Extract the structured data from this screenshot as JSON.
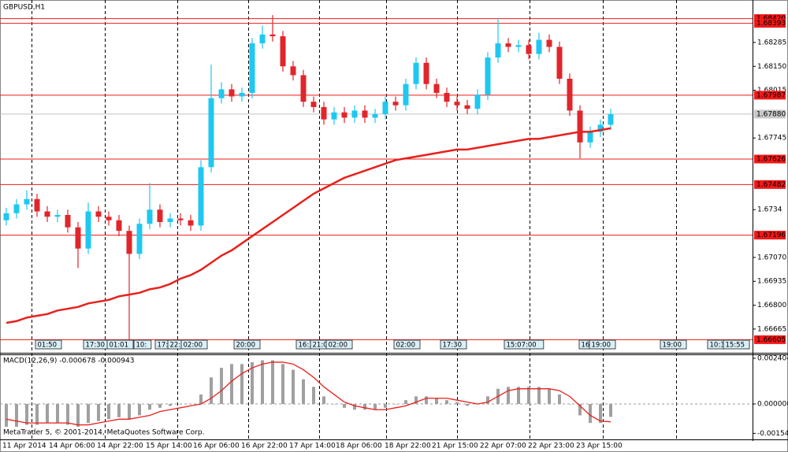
{
  "chart_data": [
    {
      "type": "candlestick",
      "title": "GBPUSD,H1",
      "up_color": "#1ec8f0",
      "down_color": "#e0262b",
      "open": [
        1.6728,
        1.6732,
        1.6737,
        1.674,
        1.6733,
        1.673,
        1.6731,
        1.6724,
        1.6712,
        1.6733,
        1.673,
        1.6728,
        1.6722,
        1.6709,
        1.6726,
        1.6734,
        1.6727,
        1.6729,
        1.6728,
        1.6725,
        1.6758,
        1.6797,
        1.6802,
        1.6798,
        1.68,
        1.6828,
        1.6833,
        1.6832,
        1.6815,
        1.681,
        1.6795,
        1.6792,
        1.6785,
        1.6789,
        1.6786,
        1.679,
        1.6786,
        1.6788,
        1.6795,
        1.6793,
        1.6805,
        1.6817,
        1.6805,
        1.68,
        1.6795,
        1.6793,
        1.6791,
        1.6799,
        1.682,
        1.6828,
        1.6826,
        1.6827,
        1.6822,
        1.683,
        1.6826,
        1.6808,
        1.679,
        1.6772,
        1.6778,
        1.6782
      ],
      "high": [
        1.6735,
        1.674,
        1.6745,
        1.6743,
        1.6736,
        1.6734,
        1.6734,
        1.6727,
        1.6738,
        1.6736,
        1.6733,
        1.6731,
        1.6725,
        1.6729,
        1.6749,
        1.6737,
        1.6732,
        1.6732,
        1.6731,
        1.6762,
        1.6816,
        1.6806,
        1.6805,
        1.6803,
        1.6831,
        1.6838,
        1.6844,
        1.6835,
        1.6818,
        1.6813,
        1.6798,
        1.6795,
        1.6792,
        1.6792,
        1.6793,
        1.6793,
        1.6791,
        1.6798,
        1.6798,
        1.6808,
        1.682,
        1.682,
        1.6808,
        1.6803,
        1.6798,
        1.6796,
        1.6802,
        1.6823,
        1.6842,
        1.6831,
        1.683,
        1.683,
        1.6834,
        1.6833,
        1.6829,
        1.6811,
        1.6793,
        1.6781,
        1.6785,
        1.6791
      ],
      "low": [
        1.6725,
        1.6729,
        1.6734,
        1.673,
        1.6727,
        1.6727,
        1.6721,
        1.6701,
        1.6709,
        1.6727,
        1.6725,
        1.6719,
        1.666,
        1.6706,
        1.6723,
        1.6724,
        1.6724,
        1.6725,
        1.6722,
        1.6722,
        1.6755,
        1.6794,
        1.6795,
        1.6795,
        1.6797,
        1.6825,
        1.6829,
        1.6812,
        1.6807,
        1.6792,
        1.6789,
        1.6782,
        1.6782,
        1.6783,
        1.6783,
        1.6783,
        1.6783,
        1.6785,
        1.679,
        1.679,
        1.6802,
        1.6802,
        1.6797,
        1.6792,
        1.679,
        1.6788,
        1.6788,
        1.6796,
        1.6817,
        1.6823,
        1.6823,
        1.6819,
        1.6819,
        1.6823,
        1.6805,
        1.6787,
        1.6763,
        1.6769,
        1.6775,
        1.6779
      ],
      "close": [
        1.6732,
        1.6737,
        1.674,
        1.6733,
        1.673,
        1.6731,
        1.6724,
        1.6712,
        1.6733,
        1.673,
        1.6728,
        1.6722,
        1.6709,
        1.6726,
        1.6734,
        1.6727,
        1.6729,
        1.6728,
        1.6725,
        1.6758,
        1.6797,
        1.6802,
        1.6798,
        1.68,
        1.6828,
        1.6833,
        1.6832,
        1.6815,
        1.681,
        1.6795,
        1.6792,
        1.6785,
        1.6789,
        1.6786,
        1.679,
        1.6786,
        1.6788,
        1.6795,
        1.6793,
        1.6805,
        1.6817,
        1.6805,
        1.68,
        1.6795,
        1.6793,
        1.6791,
        1.6799,
        1.682,
        1.6828,
        1.6826,
        1.6827,
        1.6822,
        1.683,
        1.6826,
        1.6808,
        1.679,
        1.6772,
        1.6778,
        1.6782,
        1.6788
      ],
      "ma": {
        "color": "#e8201c",
        "values": [
          1.667,
          1.6671,
          1.6673,
          1.6674,
          1.6675,
          1.6677,
          1.6678,
          1.6679,
          1.6681,
          1.6682,
          1.6683,
          1.6685,
          1.6686,
          1.6687,
          1.6689,
          1.669,
          1.6692,
          1.6695,
          1.6697,
          1.67,
          1.6704,
          1.6708,
          1.6711,
          1.6715,
          1.6719,
          1.6723,
          1.6727,
          1.6731,
          1.6735,
          1.6739,
          1.6743,
          1.6746,
          1.6749,
          1.6752,
          1.6754,
          1.6756,
          1.6758,
          1.676,
          1.6762,
          1.6763,
          1.6764,
          1.6765,
          1.6766,
          1.6767,
          1.6768,
          1.6768,
          1.6769,
          1.677,
          1.6771,
          1.6772,
          1.6773,
          1.6774,
          1.6774,
          1.6775,
          1.6776,
          1.6777,
          1.6778,
          1.6778,
          1.6779,
          1.678
        ]
      },
      "ylim": [
        1.66531,
        1.68525
      ],
      "yticks": [
        1.68285,
        {
          "value": 1.6815,
          "label": "1.68150"
        },
        1.68015,
        1.67745,
        1.6734,
        {
          "value": 1.6707,
          "label": "1.67070"
        },
        1.66935,
        {
          "value": 1.668,
          "label": "1.66800"
        },
        1.66665
      ],
      "levels": [
        {
          "value": 1.6842,
          "label": "1.68420"
        },
        1.68393,
        1.67987,
        1.67626,
        1.67482,
        1.67196,
        1.66605
      ],
      "level_color": "#f01818",
      "current_price": {
        "value": 1.6788,
        "label": "1.67880"
      },
      "markers": [
        "01:50",
        "17:30",
        "01:01",
        "10:",
        "17:",
        "22:",
        "02:00",
        "20:00",
        "16:3",
        "21:0",
        "02:00",
        "02:00",
        "17:30",
        "15:07:00",
        "16",
        "19:00",
        "19:00",
        "10:3",
        "15:55"
      ],
      "x_labels": [
        "11 Apr 2014",
        "14 Apr 06:00",
        "14 Apr 22:00",
        "15 Apr 14:00",
        "16 Apr 06:00",
        "16 Apr 22:00",
        "17 Apr 14:00",
        "18 Apr 06:00",
        "18 Apr 22:00",
        "21 Apr 15:00",
        "22 Apr 07:00",
        "22 Apr 23:00",
        "23 Apr 15:00"
      ]
    },
    {
      "type": "macd",
      "title": "MACD(12,26,9) -0.000678 -0.000943",
      "footer": "MetaTrader 5, © 2001-2014, MetaQuotes Software Corp.",
      "color": "#a0a0a0",
      "values": [
        -0.0012,
        -0.0012,
        -0.0011,
        -0.0011,
        -0.001,
        -0.001,
        -0.0011,
        -0.0012,
        -0.001,
        -0.0009,
        -0.0008,
        -0.0007,
        -0.0008,
        -0.0006,
        -0.0003,
        -0.0002,
        -0.0001,
        0,
        0,
        0.0005,
        0.0014,
        0.0019,
        0.0021,
        0.0021,
        0.0022,
        0.0023,
        0.0023,
        0.0021,
        0.0018,
        0.0013,
        0.0009,
        0.0004,
        0,
        -0.0002,
        -0.0003,
        -0.0003,
        -0.0003,
        -0.0002,
        0,
        0.0002,
        0.0004,
        0.0004,
        0.0003,
        0.0002,
        0.0001,
        -0.0001,
        0,
        0.0004,
        0.0008,
        0.0009,
        0.0009,
        0.0009,
        0.0009,
        0.0008,
        0.0005,
        0,
        -0.0006,
        -0.001,
        -0.001,
        -0.00068
      ],
      "signal": {
        "color": "#e8201c",
        "values": [
          -0.0008,
          -0.0009,
          -0.001,
          -0.001,
          -0.001,
          -0.001,
          -0.001,
          -0.0011,
          -0.0011,
          -0.001,
          -0.0009,
          -0.0008,
          -0.0008,
          -0.0007,
          -0.0006,
          -0.0004,
          -0.0003,
          -0.0002,
          -0.0001,
          0,
          0.0003,
          0.0007,
          0.0012,
          0.0016,
          0.0019,
          0.0021,
          0.0022,
          0.0022,
          0.0021,
          0.0018,
          0.0014,
          0.0009,
          0.0005,
          0.0001,
          -0.0001,
          -0.0002,
          -0.0003,
          -0.0003,
          -0.0002,
          -0.0001,
          0.0001,
          0.0003,
          0.0003,
          0.0003,
          0.0002,
          0.0001,
          0,
          0.0001,
          0.0004,
          0.0007,
          0.0008,
          0.0008,
          0.0008,
          0.0008,
          0.0007,
          0.0004,
          -0.0001,
          -0.0006,
          -0.0009,
          -0.00094
        ]
      },
      "ylim": [
        -0.001865,
        0.002611
      ],
      "yticks": [
        0.002404,
        {
          "value": 0,
          "label": "0.000000"
        },
        -0.001548
      ]
    }
  ]
}
